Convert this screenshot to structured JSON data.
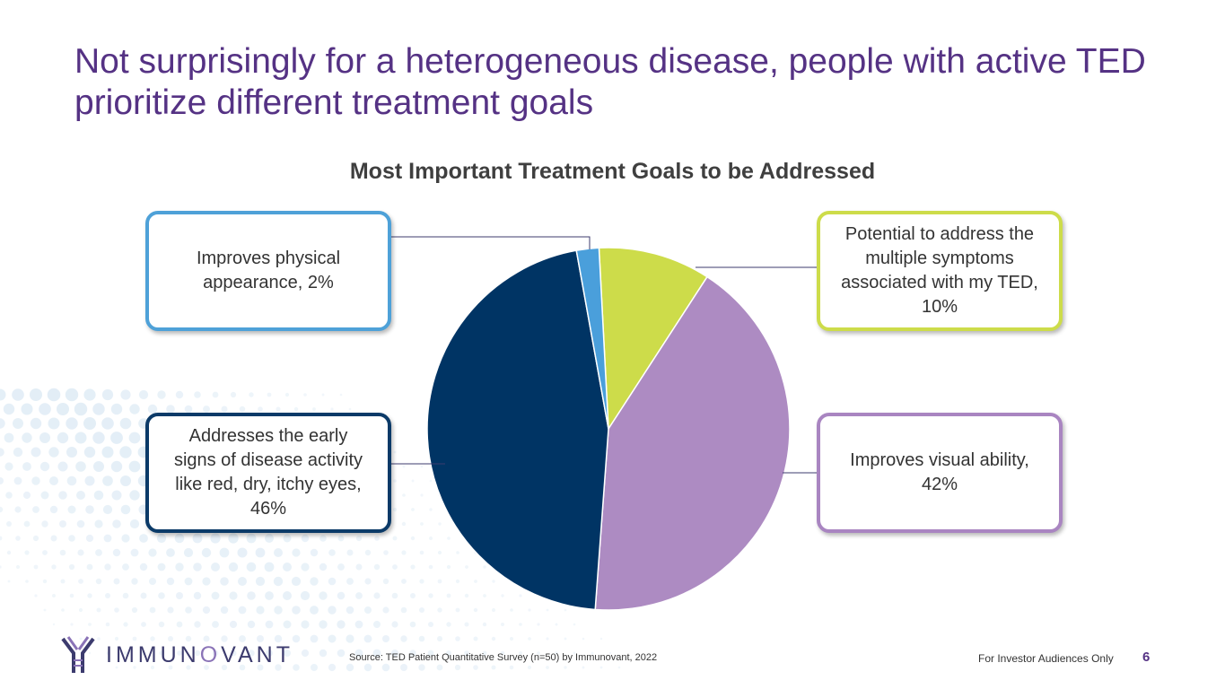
{
  "slide": {
    "title": "Not surprisingly for a heterogeneous disease, people with active TED prioritize different treatment goals",
    "source": "Source: TED Patient Quantitative Survey (n=50) by Immunovant, 2022",
    "footer_note": "For Investor Audiences Only",
    "page_number": "6"
  },
  "logo": {
    "text_a": "IMMUN",
    "text_o": "O",
    "text_b": "VANT"
  },
  "chart_data": {
    "type": "pie",
    "title": "Most Important Treatment Goals to be Addressed",
    "start_angle_deg": -3,
    "slices": [
      {
        "label": "Potential to address the multiple symptoms associated with my TED",
        "value": 10,
        "color": "#cddc4a"
      },
      {
        "label": "Improves visual ability",
        "value": 42,
        "color": "#ad8bc2"
      },
      {
        "label": "Addresses the early signs of disease activity like red, dry, itchy eyes",
        "value": 46,
        "color": "#003464"
      },
      {
        "label": "Improves physical appearance",
        "value": 2,
        "color": "#4a9fdb"
      }
    ],
    "callouts": {
      "appearance": "Improves physical appearance, 2%",
      "symptoms": "Potential to address the multiple symptoms associated with my TED, 10%",
      "early": "Addresses the early signs of disease activity like red, dry, itchy eyes, 46%",
      "visual": "Improves visual ability, 42%"
    }
  }
}
